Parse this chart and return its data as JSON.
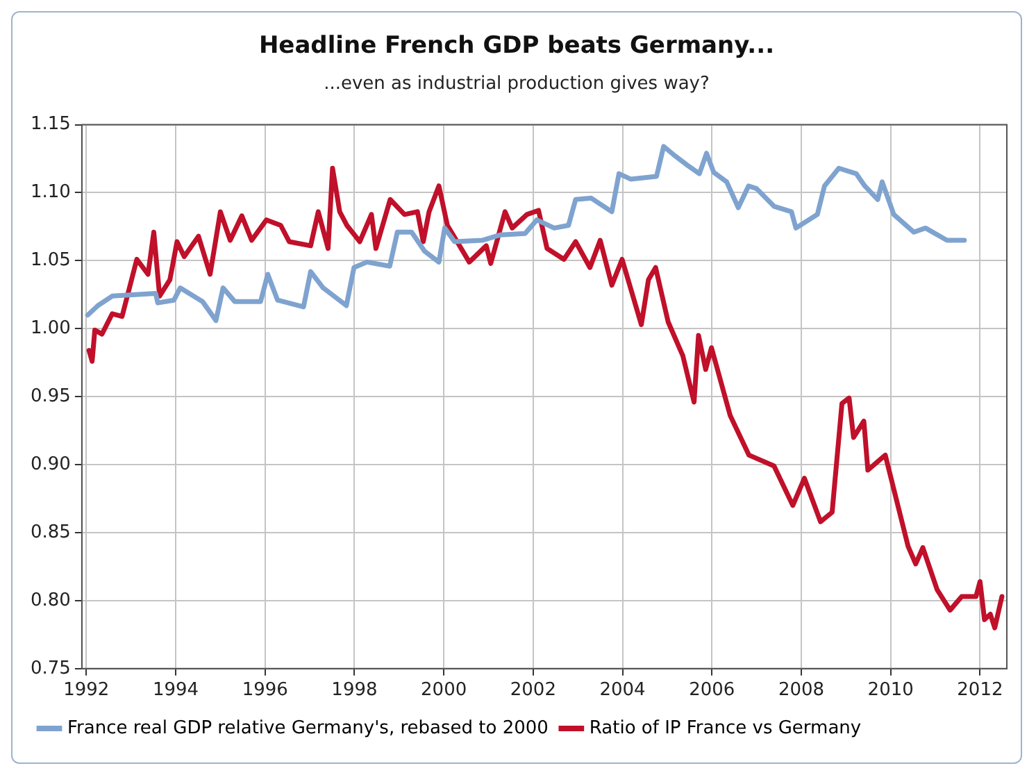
{
  "chart_data": {
    "type": "line",
    "title": "Headline French GDP beats Germany...",
    "subtitle": "...even as industrial production gives way?",
    "xlim": [
      1991.9,
      2012.6
    ],
    "xticks": [
      1992,
      1994,
      1996,
      1998,
      2000,
      2002,
      2004,
      2006,
      2008,
      2010,
      2012
    ],
    "ylim": [
      0.75,
      1.15
    ],
    "yticks": [
      {
        "value": 0.75,
        "label": "0.75"
      },
      {
        "value": 0.8,
        "label": "0.80"
      },
      {
        "value": 0.85,
        "label": "0.85"
      },
      {
        "value": 0.9,
        "label": "0.90"
      },
      {
        "value": 0.95,
        "label": "0.95"
      },
      {
        "value": 1,
        "label": "1.00"
      },
      {
        "value": 1.05,
        "label": "1.05"
      },
      {
        "value": 1.1,
        "label": "1.10"
      },
      {
        "value": 1.15,
        "label": "1.15"
      }
    ],
    "grid": true,
    "legend": "bottom",
    "line_style": "solid",
    "marker": "none",
    "series": [
      {
        "name": "France real GDP relative Germany's, rebased to 2000",
        "color": "#7fa3cf",
        "x": [
          1992.03,
          1992.26,
          1992.58,
          1993.55,
          1993.6,
          1993.96,
          1994.1,
          1994.6,
          1994.9,
          1995.06,
          1995.32,
          1995.9,
          1996.06,
          1996.28,
          1996.86,
          1997.02,
          1997.3,
          1997.82,
          1997.99,
          1998.28,
          1998.79,
          1998.96,
          1999.28,
          1999.57,
          1999.89,
          2000.02,
          2000.24,
          2000.86,
          2001.27,
          2001.82,
          2002.08,
          2002.47,
          2002.79,
          2002.95,
          2003.3,
          2003.76,
          2003.92,
          2004.18,
          2004.76,
          2004.92,
          2005.14,
          2005.46,
          2005.72,
          2005.88,
          2006.04,
          2006.33,
          2006.59,
          2006.82,
          2007.0,
          2007.39,
          2007.78,
          2007.88,
          2008.36,
          2008.52,
          2008.84,
          2009.23,
          2009.42,
          2009.71,
          2009.81,
          2010.07,
          2010.52,
          2010.78,
          2011.26,
          2011.65
        ],
        "values": [
          1.01,
          1.017,
          1.024,
          1.026,
          1.019,
          1.021,
          1.03,
          1.02,
          1.006,
          1.03,
          1.02,
          1.02,
          1.04,
          1.021,
          1.016,
          1.042,
          1.03,
          1.017,
          1.045,
          1.049,
          1.046,
          1.071,
          1.071,
          1.057,
          1.049,
          1.074,
          1.064,
          1.065,
          1.069,
          1.07,
          1.08,
          1.074,
          1.076,
          1.095,
          1.096,
          1.086,
          1.114,
          1.11,
          1.112,
          1.134,
          1.128,
          1.12,
          1.114,
          1.129,
          1.115,
          1.108,
          1.089,
          1.105,
          1.103,
          1.09,
          1.086,
          1.074,
          1.084,
          1.105,
          1.118,
          1.114,
          1.105,
          1.095,
          1.108,
          1.084,
          1.071,
          1.074,
          1.065,
          1.065
        ]
      },
      {
        "name": "Ratio of IP France vs Germany",
        "color": "#c0102a",
        "x": [
          1992.06,
          1992.13,
          1992.19,
          1992.35,
          1992.58,
          1992.8,
          1993.13,
          1993.38,
          1993.51,
          1993.64,
          1993.87,
          1994.03,
          1994.19,
          1994.51,
          1994.77,
          1995.0,
          1995.22,
          1995.48,
          1995.7,
          1996.03,
          1996.35,
          1996.54,
          1997.02,
          1997.19,
          1997.41,
          1997.51,
          1997.67,
          1997.83,
          1998.12,
          1998.38,
          1998.48,
          1998.8,
          1999.12,
          1999.41,
          1999.54,
          1999.67,
          1999.89,
          2000.08,
          2000.57,
          2000.95,
          2001.05,
          2001.37,
          2001.53,
          2001.86,
          2002.12,
          2002.31,
          2002.69,
          2002.95,
          2003.27,
          2003.5,
          2003.76,
          2003.99,
          2004.42,
          2004.58,
          2004.74,
          2005.02,
          2005.35,
          2005.6,
          2005.7,
          2005.86,
          2005.99,
          2006.41,
          2006.83,
          2007.39,
          2007.81,
          2008.07,
          2008.43,
          2008.69,
          2008.91,
          2009.07,
          2009.17,
          2009.4,
          2009.49,
          2009.88,
          2010.07,
          2010.39,
          2010.56,
          2010.72,
          2011.04,
          2011.33,
          2011.59,
          2011.91,
          2012.0,
          2012.1,
          2012.23,
          2012.33,
          2012.49
        ],
        "values": [
          0.984,
          0.976,
          0.999,
          0.996,
          1.011,
          1.009,
          1.051,
          1.04,
          1.071,
          1.024,
          1.036,
          1.064,
          1.053,
          1.068,
          1.04,
          1.086,
          1.065,
          1.083,
          1.065,
          1.08,
          1.076,
          1.064,
          1.061,
          1.086,
          1.059,
          1.118,
          1.086,
          1.076,
          1.064,
          1.084,
          1.059,
          1.095,
          1.084,
          1.086,
          1.064,
          1.086,
          1.105,
          1.076,
          1.049,
          1.061,
          1.048,
          1.086,
          1.074,
          1.084,
          1.087,
          1.059,
          1.051,
          1.064,
          1.045,
          1.065,
          1.032,
          1.051,
          1.003,
          1.036,
          1.045,
          1.005,
          0.98,
          0.946,
          0.995,
          0.97,
          0.986,
          0.936,
          0.907,
          0.899,
          0.87,
          0.89,
          0.858,
          0.865,
          0.945,
          0.949,
          0.92,
          0.932,
          0.896,
          0.907,
          0.882,
          0.84,
          0.827,
          0.839,
          0.808,
          0.793,
          0.803,
          0.803,
          0.814,
          0.786,
          0.79,
          0.78,
          0.803
        ]
      }
    ]
  }
}
